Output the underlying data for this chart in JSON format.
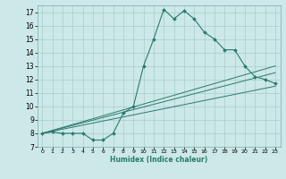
{
  "xlabel": "Humidex (Indice chaleur)",
  "ylabel": "",
  "bg_color": "#cce8e8",
  "grid_color": "#aacccc",
  "line_color": "#2a7a6a",
  "xlim": [
    -0.5,
    23.5
  ],
  "ylim": [
    7,
    17.5
  ],
  "xticks": [
    0,
    1,
    2,
    3,
    4,
    5,
    6,
    7,
    8,
    9,
    10,
    11,
    12,
    13,
    14,
    15,
    16,
    17,
    18,
    19,
    20,
    21,
    22,
    23
  ],
  "yticks": [
    7,
    8,
    9,
    10,
    11,
    12,
    13,
    14,
    15,
    16,
    17
  ],
  "series": [
    {
      "x": [
        0,
        1,
        2,
        3,
        4,
        5,
        6,
        7,
        8,
        9,
        10,
        11,
        12,
        13,
        14,
        15,
        16,
        17,
        18,
        19,
        20,
        21,
        22,
        23
      ],
      "y": [
        8.0,
        8.1,
        8.0,
        8.0,
        8.0,
        7.5,
        7.5,
        8.0,
        9.5,
        10.0,
        13.0,
        15.0,
        17.2,
        16.5,
        17.1,
        16.5,
        15.5,
        15.0,
        14.2,
        14.2,
        13.0,
        12.2,
        12.0,
        11.7
      ]
    },
    {
      "x": [
        0,
        23
      ],
      "y": [
        8.0,
        13.0
      ]
    },
    {
      "x": [
        0,
        23
      ],
      "y": [
        8.0,
        12.5
      ]
    },
    {
      "x": [
        0,
        23
      ],
      "y": [
        8.0,
        11.5
      ]
    }
  ]
}
